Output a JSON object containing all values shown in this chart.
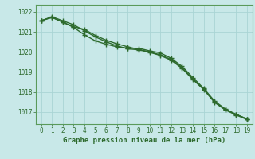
{
  "x": [
    0,
    1,
    2,
    3,
    4,
    5,
    6,
    7,
    8,
    9,
    10,
    11,
    12,
    13,
    14,
    15,
    16,
    17,
    18,
    19
  ],
  "line1": [
    1021.55,
    1021.75,
    1021.55,
    1021.35,
    1021.05,
    1020.75,
    1020.5,
    1020.3,
    1020.15,
    1020.1,
    1019.98,
    1019.82,
    1019.58,
    1019.18,
    1018.62,
    1018.12,
    1017.48,
    1017.1,
    1016.85,
    1016.62
  ],
  "line2": [
    1021.55,
    1021.72,
    1021.48,
    1021.22,
    1020.85,
    1020.55,
    1020.38,
    1020.25,
    1020.18,
    1020.18,
    1020.05,
    1019.95,
    1019.68,
    1019.28,
    1018.72,
    1018.18,
    1017.55,
    1017.15,
    1016.88,
    1016.65
  ],
  "line3": [
    1021.55,
    1021.72,
    1021.48,
    1021.25,
    1021.12,
    1020.82,
    1020.58,
    1020.4,
    1020.25,
    1020.12,
    1020.0,
    1019.85,
    1019.62,
    1019.22,
    1018.65,
    1018.15,
    1017.52,
    1017.12,
    1016.88,
    1016.65
  ],
  "ylim": [
    1016.4,
    1022.35
  ],
  "yticks": [
    1017,
    1018,
    1019,
    1020,
    1021,
    1022
  ],
  "xlabel": "Graphe pression niveau de la mer (hPa)",
  "line_color": "#2d6a2d",
  "bg_color": "#c8e8e8",
  "grid_color": "#b0d8d8",
  "marker": "+",
  "marker_size": 4,
  "line_width": 1.0
}
